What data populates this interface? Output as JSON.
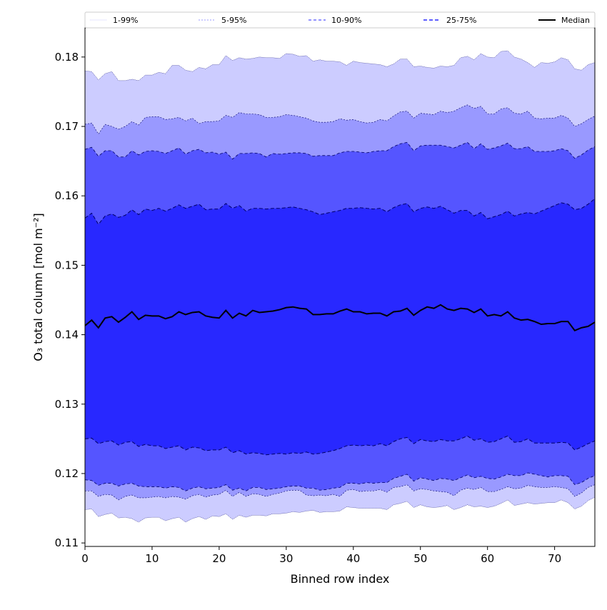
{
  "chart_data": {
    "type": "area",
    "title": "",
    "xlabel": "Binned row index",
    "ylabel": "O₃ total column [mol m⁻²]",
    "xlim": [
      0,
      76
    ],
    "ylim": [
      0.1095,
      0.1842
    ],
    "xticks": [
      0,
      10,
      20,
      30,
      40,
      50,
      60,
      70
    ],
    "xtick_labels": [
      "0",
      "10",
      "20",
      "30",
      "40",
      "50",
      "60",
      "70"
    ],
    "yticks": [
      0.11,
      0.12,
      0.13,
      0.14,
      0.15,
      0.16,
      0.17,
      0.18
    ],
    "ytick_labels": [
      "0.11",
      "0.12",
      "0.13",
      "0.14",
      "0.15",
      "0.16",
      "0.17",
      "0.18"
    ],
    "grid": false,
    "legend_position": "top",
    "colors": {
      "band_1_99": "#ccccff",
      "band_5_95": "#9999ff",
      "band_10_90": "#5555ff",
      "band_25_75": "#2828ff",
      "median": "#000000",
      "boundary": "#000066"
    },
    "x": [
      0,
      1,
      2,
      3,
      4,
      5,
      6,
      7,
      8,
      9,
      10,
      11,
      12,
      13,
      14,
      15,
      16,
      17,
      18,
      19,
      20,
      21,
      22,
      23,
      24,
      25,
      26,
      27,
      28,
      29,
      30,
      31,
      32,
      33,
      34,
      35,
      36,
      37,
      38,
      39,
      40,
      41,
      42,
      43,
      44,
      45,
      46,
      47,
      48,
      49,
      50,
      51,
      52,
      53,
      54,
      55,
      56,
      57,
      58,
      59,
      60,
      61,
      62,
      63,
      64,
      65,
      66,
      67,
      68,
      69,
      70,
      71,
      72,
      73,
      74,
      75,
      76
    ],
    "series": [
      {
        "name": "1-99%",
        "lower": [
          0.1148,
          0.1149,
          0.1138,
          0.1141,
          0.1143,
          0.1136,
          0.1137,
          0.1135,
          0.113,
          0.1136,
          0.1137,
          0.1137,
          0.1132,
          0.1135,
          0.1137,
          0.113,
          0.1135,
          0.1138,
          0.1134,
          0.1139,
          0.1138,
          0.1142,
          0.1134,
          0.114,
          0.1137,
          0.114,
          0.114,
          0.1139,
          0.1142,
          0.1142,
          0.1143,
          0.1145,
          0.1144,
          0.1146,
          0.1147,
          0.1144,
          0.1145,
          0.1145,
          0.1146,
          0.1152,
          0.1151,
          0.115,
          0.115,
          0.115,
          0.115,
          0.1148,
          0.1155,
          0.1157,
          0.116,
          0.1151,
          0.1155,
          0.1152,
          0.1151,
          0.1152,
          0.1154,
          0.1148,
          0.1151,
          0.1155,
          0.1152,
          0.1153,
          0.1151,
          0.1153,
          0.1157,
          0.1162,
          0.1154,
          0.1156,
          0.1158,
          0.1156,
          0.1157,
          0.1158,
          0.1158,
          0.1162,
          0.1158,
          0.1149,
          0.1153,
          0.1161,
          0.1166
        ],
        "upper": [
          0.178,
          0.1779,
          0.1767,
          0.1776,
          0.1779,
          0.1766,
          0.1766,
          0.1768,
          0.1766,
          0.1774,
          0.1774,
          0.1778,
          0.1776,
          0.1788,
          0.1788,
          0.1781,
          0.1779,
          0.1785,
          0.1783,
          0.1789,
          0.1789,
          0.1802,
          0.1795,
          0.1799,
          0.1797,
          0.1798,
          0.18,
          0.1799,
          0.1799,
          0.1798,
          0.1805,
          0.1804,
          0.1801,
          0.1802,
          0.1794,
          0.1796,
          0.1794,
          0.1794,
          0.1793,
          0.1788,
          0.1794,
          0.1792,
          0.1791,
          0.179,
          0.1789,
          0.1786,
          0.179,
          0.1797,
          0.1797,
          0.1786,
          0.1787,
          0.1785,
          0.1784,
          0.1787,
          0.1786,
          0.1788,
          0.1799,
          0.1801,
          0.1796,
          0.1805,
          0.18,
          0.1799,
          0.1808,
          0.1809,
          0.18,
          0.1797,
          0.1792,
          0.1785,
          0.1792,
          0.1791,
          0.1793,
          0.1799,
          0.1796,
          0.1783,
          0.1781,
          0.1789,
          0.1792
        ]
      },
      {
        "name": "5-95%",
        "lower": [
          0.1175,
          0.1175,
          0.1167,
          0.117,
          0.1169,
          0.1162,
          0.1167,
          0.1169,
          0.1165,
          0.1165,
          0.1166,
          0.1167,
          0.1165,
          0.1167,
          0.1166,
          0.1163,
          0.1168,
          0.117,
          0.1166,
          0.1169,
          0.117,
          0.1176,
          0.1167,
          0.1173,
          0.1167,
          0.1171,
          0.117,
          0.1167,
          0.117,
          0.1172,
          0.1175,
          0.1176,
          0.1176,
          0.1169,
          0.1168,
          0.1169,
          0.1168,
          0.117,
          0.1167,
          0.1176,
          0.1177,
          0.1174,
          0.1175,
          0.1175,
          0.1177,
          0.1173,
          0.118,
          0.1181,
          0.1184,
          0.1175,
          0.1178,
          0.1177,
          0.1175,
          0.1174,
          0.1173,
          0.1168,
          0.1176,
          0.1179,
          0.1177,
          0.118,
          0.1174,
          0.1174,
          0.1177,
          0.1181,
          0.1178,
          0.1179,
          0.1183,
          0.1181,
          0.118,
          0.118,
          0.1181,
          0.118,
          0.1178,
          0.1167,
          0.1172,
          0.118,
          0.1184
        ],
        "upper": [
          0.1703,
          0.1705,
          0.1689,
          0.1703,
          0.17,
          0.1696,
          0.17,
          0.1707,
          0.1702,
          0.1713,
          0.1714,
          0.1714,
          0.171,
          0.1711,
          0.1713,
          0.1708,
          0.1712,
          0.1704,
          0.1707,
          0.1707,
          0.1708,
          0.1716,
          0.1713,
          0.172,
          0.1718,
          0.1718,
          0.1717,
          0.1713,
          0.1713,
          0.1714,
          0.1717,
          0.1716,
          0.1714,
          0.1712,
          0.1708,
          0.1706,
          0.1706,
          0.1707,
          0.1711,
          0.1709,
          0.171,
          0.1707,
          0.1705,
          0.1706,
          0.171,
          0.1708,
          0.1715,
          0.1721,
          0.1722,
          0.1712,
          0.1719,
          0.1718,
          0.1717,
          0.1722,
          0.172,
          0.1722,
          0.1727,
          0.1731,
          0.1726,
          0.1729,
          0.1718,
          0.1718,
          0.1725,
          0.1727,
          0.1719,
          0.1718,
          0.1722,
          0.1712,
          0.1711,
          0.1712,
          0.1712,
          0.1716,
          0.1712,
          0.17,
          0.1704,
          0.171,
          0.1715
        ]
      },
      {
        "name": "10-90%",
        "lower": [
          0.1191,
          0.119,
          0.1183,
          0.1186,
          0.1186,
          0.1182,
          0.1185,
          0.1186,
          0.1182,
          0.1181,
          0.1181,
          0.1181,
          0.1179,
          0.1181,
          0.118,
          0.1175,
          0.1179,
          0.1181,
          0.1178,
          0.1179,
          0.118,
          0.1184,
          0.1176,
          0.1179,
          0.1175,
          0.118,
          0.118,
          0.1177,
          0.1178,
          0.1179,
          0.1181,
          0.1182,
          0.1182,
          0.1179,
          0.1179,
          0.1176,
          0.1177,
          0.1179,
          0.118,
          0.1186,
          0.1186,
          0.1185,
          0.1187,
          0.1186,
          0.1187,
          0.1187,
          0.1193,
          0.1196,
          0.1199,
          0.1189,
          0.1194,
          0.1192,
          0.119,
          0.1193,
          0.1192,
          0.119,
          0.1194,
          0.1198,
          0.1194,
          0.1196,
          0.1193,
          0.1192,
          0.1195,
          0.1199,
          0.1197,
          0.1197,
          0.1201,
          0.1199,
          0.1197,
          0.1195,
          0.1197,
          0.1197,
          0.1196,
          0.1184,
          0.1187,
          0.1193,
          0.1197
        ],
        "upper": [
          0.1667,
          0.167,
          0.1657,
          0.1665,
          0.1665,
          0.1656,
          0.1656,
          0.1665,
          0.1659,
          0.1664,
          0.1665,
          0.1664,
          0.1661,
          0.1665,
          0.1669,
          0.166,
          0.1665,
          0.1667,
          0.1662,
          0.1663,
          0.166,
          0.1663,
          0.1653,
          0.1661,
          0.1661,
          0.1662,
          0.1661,
          0.1656,
          0.1661,
          0.166,
          0.1661,
          0.1662,
          0.1662,
          0.1661,
          0.1657,
          0.1658,
          0.1658,
          0.1658,
          0.1662,
          0.1664,
          0.1664,
          0.1663,
          0.1662,
          0.1664,
          0.1665,
          0.1665,
          0.1671,
          0.1675,
          0.1677,
          0.1665,
          0.1672,
          0.1673,
          0.1673,
          0.1673,
          0.1671,
          0.1669,
          0.1673,
          0.1677,
          0.1668,
          0.1675,
          0.1667,
          0.1669,
          0.1672,
          0.1676,
          0.1668,
          0.1668,
          0.1671,
          0.1664,
          0.1664,
          0.1664,
          0.1665,
          0.1668,
          0.1665,
          0.1654,
          0.1659,
          0.1666,
          0.1671
        ]
      },
      {
        "name": "25-75%",
        "lower": [
          0.125,
          0.1251,
          0.1243,
          0.1246,
          0.1247,
          0.1241,
          0.1245,
          0.1246,
          0.1239,
          0.1242,
          0.124,
          0.124,
          0.1236,
          0.1238,
          0.124,
          0.1234,
          0.1238,
          0.1237,
          0.1233,
          0.1234,
          0.1234,
          0.1238,
          0.123,
          0.1233,
          0.1228,
          0.123,
          0.1229,
          0.1227,
          0.1228,
          0.1229,
          0.1228,
          0.123,
          0.1229,
          0.1231,
          0.1228,
          0.1229,
          0.1231,
          0.1233,
          0.1236,
          0.124,
          0.1241,
          0.124,
          0.1241,
          0.124,
          0.1243,
          0.124,
          0.1246,
          0.125,
          0.1252,
          0.1243,
          0.1249,
          0.1247,
          0.1246,
          0.1249,
          0.1247,
          0.1247,
          0.125,
          0.1254,
          0.1248,
          0.125,
          0.1245,
          0.1246,
          0.125,
          0.1254,
          0.1245,
          0.1246,
          0.125,
          0.1244,
          0.1244,
          0.1244,
          0.1244,
          0.1245,
          0.1244,
          0.1234,
          0.1238,
          0.1243,
          0.1247
        ],
        "upper": [
          0.1568,
          0.1575,
          0.1559,
          0.1571,
          0.1574,
          0.1569,
          0.1572,
          0.158,
          0.1573,
          0.1581,
          0.1579,
          0.1582,
          0.1578,
          0.1582,
          0.1587,
          0.1582,
          0.1585,
          0.1588,
          0.158,
          0.1581,
          0.1581,
          0.1589,
          0.1582,
          0.1586,
          0.1578,
          0.1582,
          0.1582,
          0.1581,
          0.1582,
          0.1582,
          0.1583,
          0.1584,
          0.1582,
          0.158,
          0.1577,
          0.1573,
          0.1575,
          0.1577,
          0.1579,
          0.1582,
          0.1582,
          0.1583,
          0.1582,
          0.1581,
          0.1582,
          0.1577,
          0.1583,
          0.1587,
          0.1589,
          0.1577,
          0.1582,
          0.1584,
          0.1582,
          0.1585,
          0.158,
          0.1575,
          0.1579,
          0.1579,
          0.1571,
          0.1576,
          0.1567,
          0.157,
          0.1573,
          0.1578,
          0.1571,
          0.1574,
          0.1576,
          0.1574,
          0.1578,
          0.1582,
          0.1586,
          0.159,
          0.1588,
          0.158,
          0.1582,
          0.1588,
          0.1596
        ]
      },
      {
        "name": "Median",
        "values": [
          0.1413,
          0.1421,
          0.141,
          0.1424,
          0.1426,
          0.1418,
          0.1425,
          0.1433,
          0.1422,
          0.1428,
          0.1427,
          0.1427,
          0.1423,
          0.1426,
          0.1433,
          0.1429,
          0.1432,
          0.1433,
          0.1427,
          0.1425,
          0.1424,
          0.1435,
          0.1424,
          0.1431,
          0.1427,
          0.1435,
          0.1432,
          0.1433,
          0.1434,
          0.1436,
          0.1439,
          0.144,
          0.1438,
          0.1437,
          0.1429,
          0.1429,
          0.143,
          0.143,
          0.1434,
          0.1437,
          0.1433,
          0.1433,
          0.143,
          0.1431,
          0.1431,
          0.1427,
          0.1433,
          0.1434,
          0.1438,
          0.1428,
          0.1435,
          0.144,
          0.1438,
          0.1443,
          0.1437,
          0.1435,
          0.1438,
          0.1437,
          0.1432,
          0.1437,
          0.1427,
          0.1429,
          0.1427,
          0.1433,
          0.1424,
          0.1421,
          0.1422,
          0.1419,
          0.1415,
          0.1416,
          0.1416,
          0.1419,
          0.1419,
          0.1406,
          0.141,
          0.1412,
          0.1418
        ]
      }
    ]
  }
}
